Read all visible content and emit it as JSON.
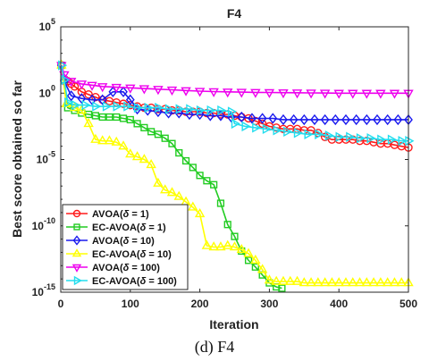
{
  "caption": "(d) F4",
  "chart_data": {
    "type": "line",
    "title": "F4",
    "xlabel": "Iteration",
    "ylabel": "Best score obtained so far",
    "xlim": [
      0,
      500
    ],
    "ylim_log10": [
      -15,
      5
    ],
    "y_scale": "log",
    "x_ticks": [
      "0",
      "100",
      "200",
      "300",
      "400",
      "500"
    ],
    "y_ticks": [
      {
        "base": "10",
        "exp": "5"
      },
      {
        "base": "10",
        "exp": "0"
      },
      {
        "base": "10",
        "exp": "-5"
      },
      {
        "base": "10",
        "exp": "-10"
      },
      {
        "base": "10",
        "exp": "-15"
      }
    ],
    "legend_position": "bottom-left",
    "series": [
      {
        "name": "AVOA(δ = 1)",
        "legend_main": "AVOA(",
        "legend_sym": "δ",
        "legend_tail": " = 1)",
        "color": "#ff1a1a",
        "marker": "circle",
        "log10_points": [
          [
            1,
            2.1
          ],
          [
            5,
            1.0
          ],
          [
            10,
            0.9
          ],
          [
            15,
            0.7
          ],
          [
            20,
            0.5
          ],
          [
            30,
            0.1
          ],
          [
            40,
            -0.1
          ],
          [
            50,
            -0.3
          ],
          [
            60,
            -0.5
          ],
          [
            70,
            -0.6
          ],
          [
            80,
            -0.7
          ],
          [
            90,
            -0.8
          ],
          [
            100,
            -0.9
          ],
          [
            110,
            -1.0
          ],
          [
            120,
            -1.1
          ],
          [
            130,
            -1.1
          ],
          [
            140,
            -1.2
          ],
          [
            150,
            -1.2
          ],
          [
            160,
            -1.3
          ],
          [
            170,
            -1.3
          ],
          [
            180,
            -1.4
          ],
          [
            190,
            -1.4
          ],
          [
            200,
            -1.4
          ],
          [
            210,
            -1.5
          ],
          [
            220,
            -1.5
          ],
          [
            230,
            -1.6
          ],
          [
            240,
            -1.6
          ],
          [
            250,
            -1.7
          ],
          [
            260,
            -1.8
          ],
          [
            270,
            -1.9
          ],
          [
            280,
            -2.1
          ],
          [
            290,
            -2.3
          ],
          [
            300,
            -2.5
          ],
          [
            310,
            -2.6
          ],
          [
            320,
            -2.7
          ],
          [
            330,
            -2.7
          ],
          [
            340,
            -2.7
          ],
          [
            350,
            -2.8
          ],
          [
            360,
            -2.8
          ],
          [
            370,
            -3.0
          ],
          [
            380,
            -3.3
          ],
          [
            390,
            -3.5
          ],
          [
            400,
            -3.5
          ],
          [
            410,
            -3.5
          ],
          [
            420,
            -3.5
          ],
          [
            430,
            -3.6
          ],
          [
            440,
            -3.6
          ],
          [
            450,
            -3.7
          ],
          [
            460,
            -3.8
          ],
          [
            470,
            -3.8
          ],
          [
            480,
            -3.9
          ],
          [
            490,
            -4.0
          ],
          [
            500,
            -4.1
          ]
        ]
      },
      {
        "name": "EC-AVOA(δ = 1)",
        "legend_main": "EC-AVOA(",
        "legend_sym": "δ",
        "legend_tail": " = 1)",
        "color": "#22cc22",
        "marker": "square",
        "log10_points": [
          [
            1,
            2.1
          ],
          [
            5,
            1.0
          ],
          [
            10,
            -1.1
          ],
          [
            20,
            -1.3
          ],
          [
            30,
            -1.5
          ],
          [
            40,
            -1.6
          ],
          [
            50,
            -1.7
          ],
          [
            60,
            -1.8
          ],
          [
            70,
            -1.8
          ],
          [
            80,
            -1.8
          ],
          [
            90,
            -1.9
          ],
          [
            100,
            -2.0
          ],
          [
            110,
            -2.3
          ],
          [
            120,
            -2.6
          ],
          [
            130,
            -2.9
          ],
          [
            140,
            -3.1
          ],
          [
            150,
            -3.4
          ],
          [
            160,
            -3.8
          ],
          [
            170,
            -4.5
          ],
          [
            180,
            -5.1
          ],
          [
            190,
            -5.6
          ],
          [
            200,
            -6.2
          ],
          [
            210,
            -6.6
          ],
          [
            220,
            -6.9
          ],
          [
            230,
            -8.3
          ],
          [
            240,
            -9.9
          ],
          [
            250,
            -10.8
          ],
          [
            260,
            -11.9
          ],
          [
            270,
            -12.6
          ],
          [
            280,
            -13.1
          ],
          [
            290,
            -13.7
          ],
          [
            300,
            -14.3
          ],
          [
            310,
            -14.6
          ],
          [
            318,
            -14.7
          ]
        ]
      },
      {
        "name": "AVOA(δ = 10)",
        "legend_main": "AVOA(",
        "legend_sym": "δ",
        "legend_tail": " = 10)",
        "color": "#1a1aee",
        "marker": "diamond",
        "log10_points": [
          [
            1,
            2.1
          ],
          [
            5,
            0.9
          ],
          [
            15,
            -0.2
          ],
          [
            30,
            -0.4
          ],
          [
            45,
            -0.5
          ],
          [
            60,
            -0.5
          ],
          [
            75,
            0.1
          ],
          [
            90,
            0.1
          ],
          [
            100,
            -0.5
          ],
          [
            110,
            -1.2
          ],
          [
            125,
            -1.3
          ],
          [
            140,
            -1.4
          ],
          [
            155,
            -1.5
          ],
          [
            170,
            -1.5
          ],
          [
            185,
            -1.6
          ],
          [
            200,
            -1.6
          ],
          [
            215,
            -1.7
          ],
          [
            230,
            -1.7
          ],
          [
            245,
            -1.8
          ],
          [
            260,
            -1.8
          ],
          [
            275,
            -1.9
          ],
          [
            290,
            -1.9
          ],
          [
            305,
            -1.9
          ],
          [
            320,
            -2.0
          ],
          [
            335,
            -2.0
          ],
          [
            350,
            -2.0
          ],
          [
            365,
            -2.0
          ],
          [
            380,
            -2.0
          ],
          [
            395,
            -2.0
          ],
          [
            410,
            -2.0
          ],
          [
            425,
            -2.0
          ],
          [
            440,
            -2.0
          ],
          [
            455,
            -2.0
          ],
          [
            470,
            -2.0
          ],
          [
            485,
            -2.0
          ],
          [
            500,
            -2.0
          ]
        ]
      },
      {
        "name": "EC-AVOA(δ = 10)",
        "legend_main": "EC-AVOA(",
        "legend_sym": "δ",
        "legend_tail": " = 10)",
        "color": "#ffff00",
        "marker": "triangle-up",
        "log10_points": [
          [
            1,
            2.1
          ],
          [
            8,
            -0.8
          ],
          [
            20,
            -1.1
          ],
          [
            30,
            -1.3
          ],
          [
            40,
            -2.3
          ],
          [
            50,
            -3.5
          ],
          [
            60,
            -3.6
          ],
          [
            70,
            -3.6
          ],
          [
            80,
            -3.7
          ],
          [
            90,
            -4.0
          ],
          [
            100,
            -4.6
          ],
          [
            110,
            -4.8
          ],
          [
            120,
            -5.0
          ],
          [
            130,
            -5.4
          ],
          [
            140,
            -6.8
          ],
          [
            150,
            -7.3
          ],
          [
            160,
            -7.5
          ],
          [
            170,
            -7.8
          ],
          [
            180,
            -8.2
          ],
          [
            190,
            -8.6
          ],
          [
            200,
            -9.1
          ],
          [
            210,
            -11.5
          ],
          [
            220,
            -11.6
          ],
          [
            230,
            -11.6
          ],
          [
            240,
            -11.5
          ],
          [
            250,
            -11.6
          ],
          [
            260,
            -11.8
          ],
          [
            270,
            -12.1
          ],
          [
            280,
            -12.6
          ],
          [
            290,
            -13.3
          ],
          [
            300,
            -14.1
          ],
          [
            310,
            -14.2
          ],
          [
            320,
            -14.2
          ],
          [
            330,
            -14.2
          ],
          [
            340,
            -14.2
          ],
          [
            350,
            -14.3
          ],
          [
            360,
            -14.3
          ],
          [
            370,
            -14.3
          ],
          [
            380,
            -14.3
          ],
          [
            390,
            -14.3
          ],
          [
            400,
            -14.3
          ],
          [
            410,
            -14.3
          ],
          [
            420,
            -14.3
          ],
          [
            430,
            -14.3
          ],
          [
            440,
            -14.3
          ],
          [
            450,
            -14.3
          ],
          [
            460,
            -14.3
          ],
          [
            470,
            -14.3
          ],
          [
            480,
            -14.3
          ],
          [
            490,
            -14.3
          ],
          [
            500,
            -14.3
          ]
        ]
      },
      {
        "name": "AVOA(δ = 100)",
        "legend_main": "AVOA(",
        "legend_sym": "δ",
        "legend_tail": " = 100)",
        "color": "#ee00ee",
        "marker": "triangle-down",
        "log10_points": [
          [
            1,
            2.1
          ],
          [
            5,
            1.4
          ],
          [
            15,
            0.9
          ],
          [
            30,
            0.7
          ],
          [
            45,
            0.6
          ],
          [
            60,
            0.5
          ],
          [
            80,
            0.45
          ],
          [
            100,
            0.4
          ],
          [
            120,
            0.35
          ],
          [
            140,
            0.3
          ],
          [
            160,
            0.25
          ],
          [
            180,
            0.2
          ],
          [
            200,
            0.15
          ],
          [
            220,
            0.12
          ],
          [
            240,
            0.1
          ],
          [
            260,
            0.08
          ],
          [
            280,
            0.06
          ],
          [
            300,
            0.05
          ],
          [
            320,
            0.04
          ],
          [
            340,
            0.03
          ],
          [
            360,
            0.02
          ],
          [
            380,
            0.01
          ],
          [
            400,
            0.0
          ],
          [
            420,
            0.0
          ],
          [
            440,
            0.0
          ],
          [
            460,
            0.0
          ],
          [
            480,
            0.0
          ],
          [
            500,
            0.0
          ]
        ]
      },
      {
        "name": "EC-AVOA(δ = 100)",
        "legend_main": "EC-AVOA(",
        "legend_sym": "δ",
        "legend_tail": " = 100)",
        "color": "#22ddee",
        "marker": "triangle-right",
        "log10_points": [
          [
            1,
            2.1
          ],
          [
            5,
            1.0
          ],
          [
            10,
            -0.7
          ],
          [
            20,
            -0.9
          ],
          [
            35,
            -0.9
          ],
          [
            50,
            -1.0
          ],
          [
            65,
            -1.0
          ],
          [
            80,
            -1.0
          ],
          [
            95,
            -1.0
          ],
          [
            110,
            -1.1
          ],
          [
            125,
            -1.1
          ],
          [
            140,
            -1.1
          ],
          [
            155,
            -1.2
          ],
          [
            170,
            -1.2
          ],
          [
            185,
            -1.2
          ],
          [
            200,
            -1.3
          ],
          [
            215,
            -1.3
          ],
          [
            230,
            -1.3
          ],
          [
            245,
            -1.4
          ],
          [
            250,
            -2.3
          ],
          [
            265,
            -2.5
          ],
          [
            280,
            -2.6
          ],
          [
            295,
            -2.7
          ],
          [
            310,
            -2.8
          ],
          [
            325,
            -2.9
          ],
          [
            340,
            -3.0
          ],
          [
            355,
            -3.1
          ],
          [
            370,
            -3.1
          ],
          [
            385,
            -3.2
          ],
          [
            400,
            -3.3
          ],
          [
            415,
            -3.3
          ],
          [
            430,
            -3.4
          ],
          [
            445,
            -3.4
          ],
          [
            460,
            -3.5
          ],
          [
            475,
            -3.5
          ],
          [
            490,
            -3.6
          ],
          [
            500,
            -3.6
          ]
        ]
      }
    ]
  }
}
